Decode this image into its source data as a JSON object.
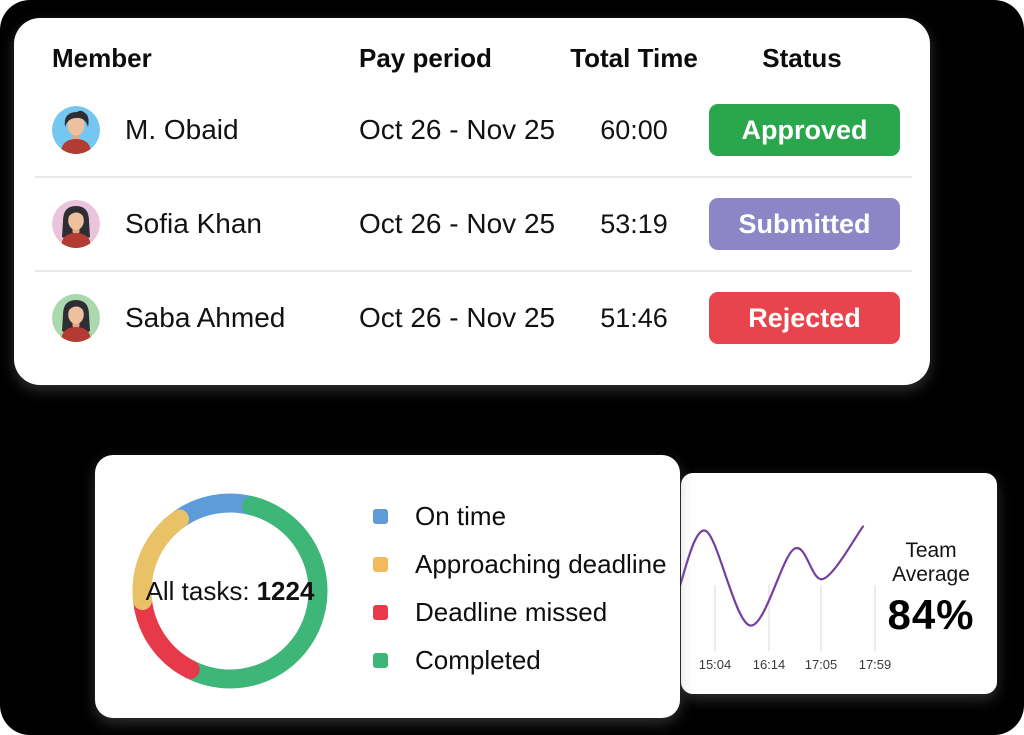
{
  "timesheet": {
    "headers": {
      "member": "Member",
      "pay_period": "Pay period",
      "total_time": "Total Time",
      "status": "Status"
    },
    "rows": [
      {
        "name": "M. Obaid",
        "period": "Oct 26 - Nov 25",
        "time": "60:00",
        "status": "Approved",
        "status_color": "#2aa64d",
        "avatar_bg": "#74c7f0",
        "avatar_kind": "male"
      },
      {
        "name": "Sofia Khan",
        "period": "Oct 26 - Nov 25",
        "time": "53:19",
        "status": "Submitted",
        "status_color": "#8c86c6",
        "avatar_bg": "#e9c4da",
        "avatar_kind": "female"
      },
      {
        "name": "Saba Ahmed",
        "period": "Oct 26 - Nov 25",
        "time": "51:46",
        "status": "Rejected",
        "status_color": "#e8444d",
        "avatar_bg": "#abd9ad",
        "avatar_kind": "female"
      }
    ]
  },
  "chart_data": [
    {
      "type": "pie",
      "donut": true,
      "center_label": "All tasks:",
      "center_value": "1224",
      "total_tasks": 1224,
      "start_angle": -35,
      "segments": [
        {
          "label": "On time",
          "value": 13.7,
          "color": "#5d9cd8"
        },
        {
          "label": "Completed",
          "value": 53.5,
          "color": "#3eb678"
        },
        {
          "label": "Deadline missed",
          "value": 15.8,
          "color": "#e6394a"
        },
        {
          "label": "Approaching deadline",
          "value": 17.0,
          "color": "#e9c167"
        }
      ],
      "legend": [
        {
          "label": "On time",
          "color": "#5d9cd8"
        },
        {
          "label": "Approaching deadline",
          "color": "#f2ba5c"
        },
        {
          "label": "Deadline missed",
          "color": "#e6394a"
        },
        {
          "label": "Completed",
          "color": "#3eb678"
        }
      ],
      "legend_position": "right"
    },
    {
      "type": "line",
      "kpi_label": "Team Average",
      "kpi_value": "84%",
      "line_color": "#7440a0",
      "grid": "vertical-ticks-only",
      "ylim": [
        0,
        100
      ],
      "x_ticks": [
        {
          "label": "15:04",
          "x": 0.17
        },
        {
          "label": "16:14",
          "x": 0.44
        },
        {
          "label": "17:05",
          "x": 0.7
        },
        {
          "label": "17:59",
          "x": 0.97
        }
      ],
      "points": [
        {
          "x": -0.01,
          "y": 40
        },
        {
          "x": 0.125,
          "y": 78
        },
        {
          "x": 0.345,
          "y": 15
        },
        {
          "x": 0.565,
          "y": 66
        },
        {
          "x": 0.71,
          "y": 46
        },
        {
          "x": 0.91,
          "y": 81
        }
      ]
    }
  ]
}
